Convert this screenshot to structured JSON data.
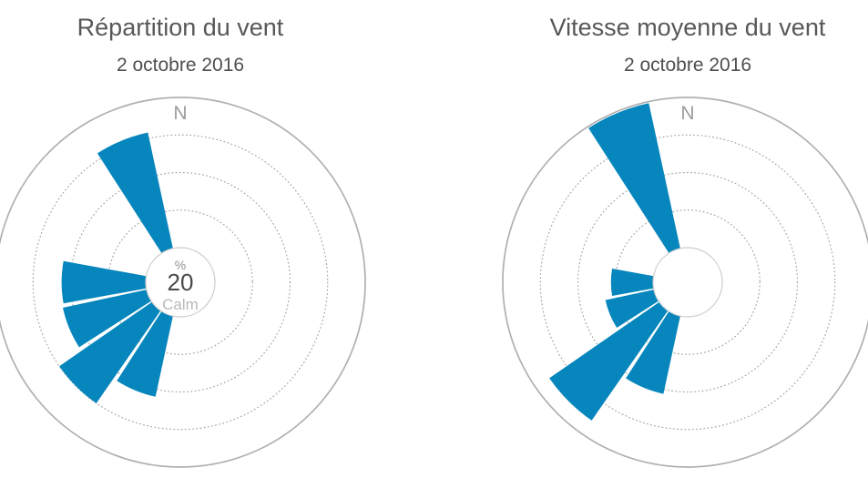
{
  "page": {
    "background_color": "#ffffff"
  },
  "colors": {
    "bar_blue": "#0686bd",
    "title_gray": "#58585a",
    "subtitle_gray": "#4f4f51",
    "axis_ring_gray": "#b0b0b0",
    "grid_dot_gray": "#a6a6a6",
    "north_label_gray": "#9c9c9c",
    "hole_border_gray": "#cccccc",
    "center_value_gray": "#4a4a4a",
    "center_unit_gray": "#909090",
    "center_caption_gray": "#b9b9b9"
  },
  "chart_data": [
    {
      "type": "windrose",
      "title": "Répartition du vent",
      "subtitle": "2 octobre 2016",
      "north_label": "N",
      "center_label": {
        "unit": "%",
        "value": "20",
        "caption": "Calm"
      },
      "calm_pct": 20,
      "directions": [
        "NNW",
        "W",
        "WSW",
        "SW",
        "SSW"
      ],
      "direction_degrees": [
        337.5,
        270,
        247.5,
        225,
        202.5
      ],
      "values_pct_of_radial_scale": [
        79,
        56,
        57,
        75,
        55
      ],
      "radial_axis": {
        "tick_labels_visible": false,
        "grid_rings_pct": [
          25,
          50,
          75
        ],
        "outer_ring_pct": 100,
        "grid_style": "dotted rings, solid outer ring"
      },
      "legend": "none"
    },
    {
      "type": "windrose",
      "title": "Vitesse moyenne du vent",
      "subtitle": "2 octobre 2016",
      "north_label": "N",
      "center_label": null,
      "directions": [
        "NNW",
        "W",
        "WSW",
        "SW",
        "SSW"
      ],
      "direction_degrees": [
        337.5,
        270,
        247.5,
        225,
        202.5
      ],
      "values_pct_of_radial_scale": [
        99,
        28,
        33,
        89,
        53
      ],
      "radial_axis": {
        "tick_labels_visible": false,
        "grid_rings_pct": [
          25,
          50,
          75
        ],
        "outer_ring_pct": 100,
        "grid_style": "dotted rings, solid outer ring"
      },
      "legend": "none"
    }
  ]
}
